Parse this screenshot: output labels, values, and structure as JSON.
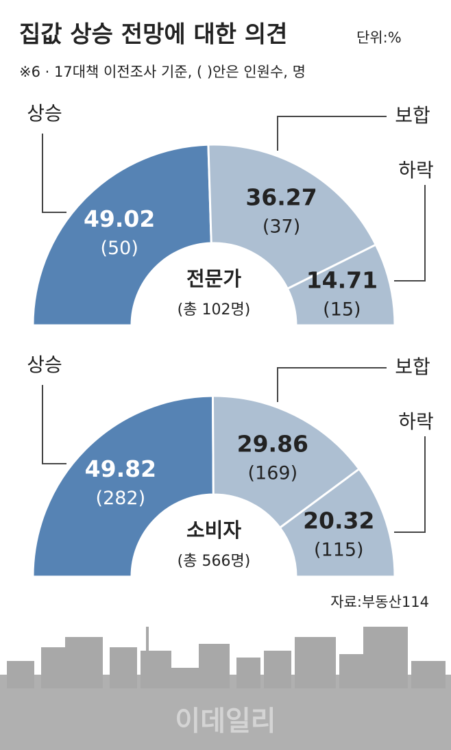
{
  "title": "집값 상승 전망에 대한 의견",
  "unit": "단위:%",
  "note": "※6 · 17대책 이전조사 기준, (  )안은 인원수, 명",
  "source": "자료:부동산114",
  "watermark": "이데일리",
  "chart_data": [
    {
      "type": "half-donut",
      "center_label": "전문가",
      "center_sublabel": "(총 102명)",
      "categories": [
        "상승",
        "보합",
        "하락"
      ],
      "values": [
        49.02,
        36.27,
        14.71
      ],
      "count_labels": [
        "(50)",
        "(37)",
        "(15)"
      ],
      "colors": [
        "#5683b4",
        "#adbfd2",
        "#adbfd2"
      ]
    },
    {
      "type": "half-donut",
      "center_label": "소비자",
      "center_sublabel": "(총 566명)",
      "categories": [
        "상승",
        "보합",
        "하락"
      ],
      "values": [
        49.82,
        29.86,
        20.32
      ],
      "count_labels": [
        "(282)",
        "(169)",
        "(115)"
      ],
      "colors": [
        "#5683b4",
        "#adbfd2",
        "#adbfd2"
      ]
    }
  ]
}
